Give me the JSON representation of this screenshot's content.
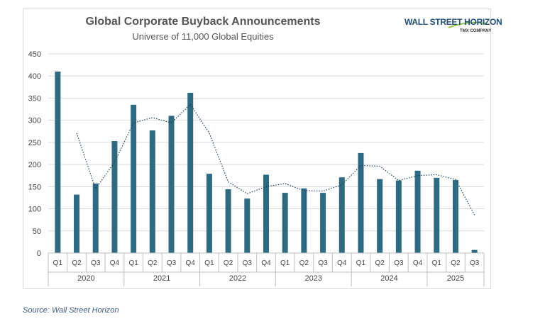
{
  "title": "Global Corporate Buyback Announcements",
  "subtitle": "Universe of 11,000 Global Equities",
  "logo": {
    "text": "WALL STREET HORIZON",
    "sub": "TMX COMPANY"
  },
  "source": "Source: Wall Street Horizon",
  "colors": {
    "bar": "#2e6b82",
    "trend": "#1f3b5a",
    "grid": "#d9d9d9",
    "logo_swoosh": "#8dc63f"
  },
  "chart_data": {
    "type": "bar",
    "title": "Global Corporate Buyback Announcements",
    "subtitle": "Universe of 11,000 Global Equities",
    "xlabel": "",
    "ylabel": "",
    "ylim": [
      0,
      450
    ],
    "yticks": [
      0,
      50,
      100,
      150,
      200,
      250,
      300,
      350,
      400,
      450
    ],
    "grid": true,
    "legend": "none",
    "categories": [
      "Q1",
      "Q2",
      "Q3",
      "Q4",
      "Q1",
      "Q2",
      "Q3",
      "Q4",
      "Q1",
      "Q2",
      "Q3",
      "Q4",
      "Q1",
      "Q2",
      "Q3",
      "Q4",
      "Q1",
      "Q2",
      "Q3",
      "Q4",
      "Q1",
      "Q2",
      "Q3"
    ],
    "groups": [
      {
        "label": "2020",
        "count": 4
      },
      {
        "label": "2021",
        "count": 4
      },
      {
        "label": "2022",
        "count": 4
      },
      {
        "label": "2023",
        "count": 4
      },
      {
        "label": "2024",
        "count": 4
      },
      {
        "label": "2025",
        "count": 3
      }
    ],
    "series": [
      {
        "type": "bar",
        "values": [
          410,
          132,
          157,
          253,
          335,
          277,
          310,
          362,
          179,
          144,
          123,
          177,
          136,
          146,
          136,
          171,
          226,
          167,
          164,
          186,
          170,
          165,
          7
        ]
      },
      {
        "type": "line-dotted",
        "values": [
          null,
          271,
          145,
          205,
          294,
          306,
          294,
          336,
          271,
          161,
          134,
          150,
          157,
          141,
          140,
          154,
          198,
          196,
          164,
          175,
          177,
          166,
          86
        ]
      }
    ]
  }
}
